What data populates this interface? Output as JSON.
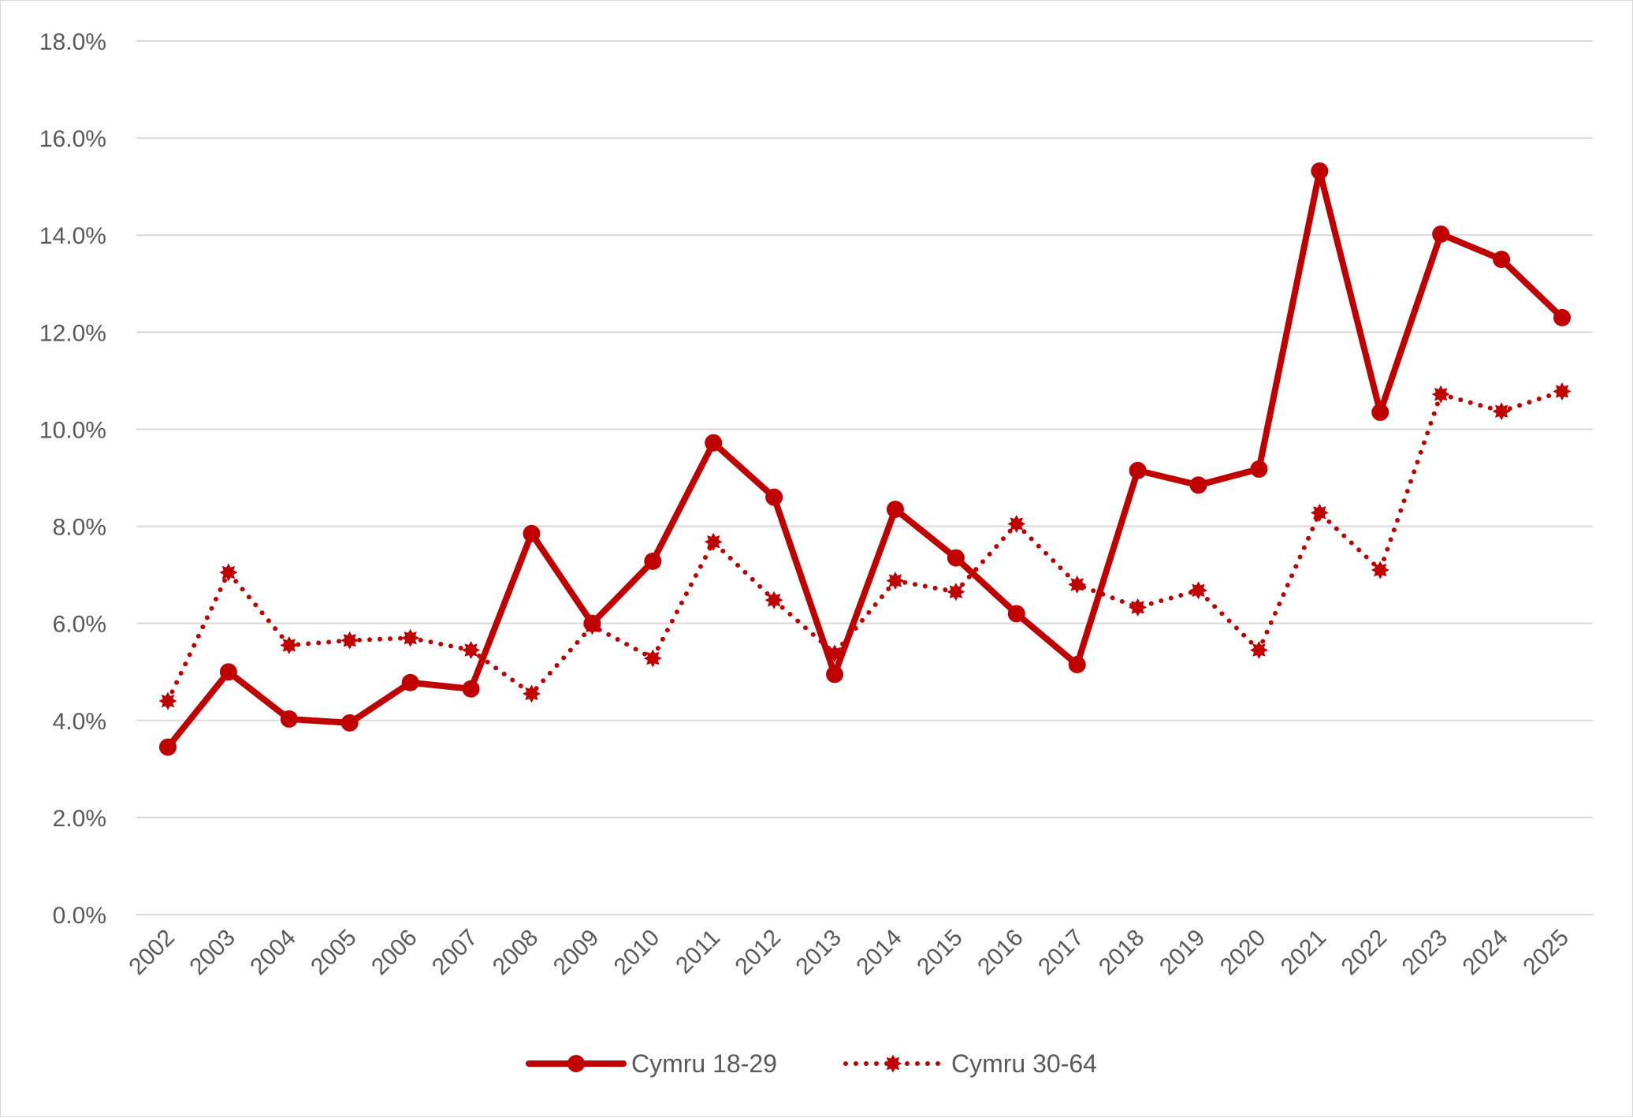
{
  "chart_data": {
    "type": "line",
    "title": "",
    "xlabel": "",
    "ylabel": "",
    "x": [
      "2002",
      "2003",
      "2004",
      "2005",
      "2006",
      "2007",
      "2008",
      "2009",
      "2010",
      "2011",
      "2012",
      "2013",
      "2014",
      "2015",
      "2016",
      "2017",
      "2018",
      "2019",
      "2020",
      "2021",
      "2022",
      "2023",
      "2024",
      "2025"
    ],
    "ylim": [
      0,
      18
    ],
    "yticks": [
      0,
      2,
      4,
      6,
      8,
      10,
      12,
      14,
      16,
      18
    ],
    "ytick_labels": [
      "0.0%",
      "2.0%",
      "4.0%",
      "6.0%",
      "8.0%",
      "10.0%",
      "12.0%",
      "14.0%",
      "16.0%",
      "18.0%"
    ],
    "y_unit": "%",
    "grid": "horizontal",
    "legend_position": "bottom",
    "series": [
      {
        "name": "Cymru 18-29",
        "color": "#C00000",
        "line_style": "solid",
        "marker": "circle",
        "values": [
          3.45,
          5.0,
          4.03,
          3.95,
          4.78,
          4.65,
          7.85,
          6.0,
          7.28,
          9.72,
          8.6,
          4.95,
          8.35,
          7.35,
          6.2,
          5.15,
          9.15,
          8.85,
          9.18,
          15.32,
          10.35,
          14.02,
          13.5,
          12.3
        ]
      },
      {
        "name": "Cymru 30-64",
        "color": "#C00000",
        "line_style": "dotted",
        "marker": "star",
        "values": [
          4.4,
          7.05,
          5.55,
          5.65,
          5.7,
          5.45,
          4.55,
          5.95,
          5.28,
          7.68,
          6.48,
          5.38,
          6.88,
          6.65,
          8.05,
          6.8,
          6.33,
          6.68,
          5.45,
          8.28,
          7.1,
          10.72,
          10.37,
          10.78
        ]
      }
    ]
  }
}
